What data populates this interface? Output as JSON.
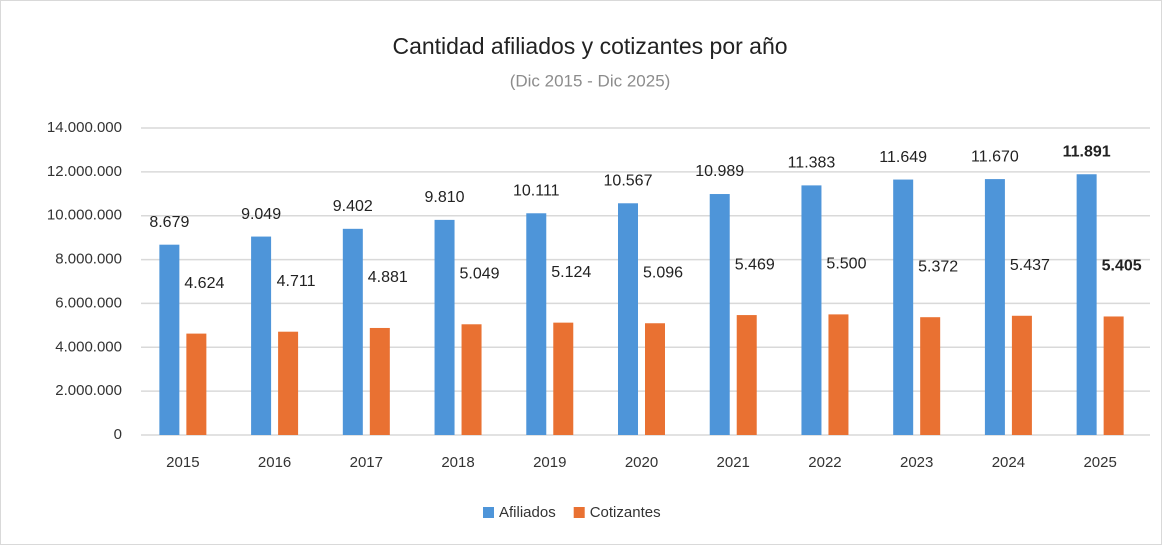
{
  "chart_data": {
    "type": "bar",
    "title": "Cantidad afiliados y cotizantes por año",
    "subtitle": "(Dic 2015 - Dic 2025)",
    "categories": [
      "2015",
      "2016",
      "2017",
      "2018",
      "2019",
      "2020",
      "2021",
      "2022",
      "2023",
      "2024",
      "2025"
    ],
    "series": [
      {
        "name": "Afiliados",
        "color": "#4e95d9",
        "values": [
          8679000,
          9049000,
          9402000,
          9810000,
          10111000,
          10567000,
          10989000,
          11383000,
          11649000,
          11670000,
          11891000
        ],
        "value_labels": [
          "8.679",
          "9.049",
          "9.402",
          "9.810",
          "10.111",
          "10.567",
          "10.989",
          "11.383",
          "11.649",
          "11.670",
          "11.891"
        ]
      },
      {
        "name": "Cotizantes",
        "color": "#e97132",
        "values": [
          4624000,
          4711000,
          4881000,
          5049000,
          5124000,
          5096000,
          5469000,
          5500000,
          5372000,
          5437000,
          5405000
        ],
        "value_labels": [
          "4.624",
          "4.711",
          "4.881",
          "5.049",
          "5.124",
          "5.096",
          "5.469",
          "5.500",
          "5.372",
          "5.437",
          "5.405"
        ]
      }
    ],
    "ylim": [
      0,
      14000000
    ],
    "yticks": [
      0,
      {
        "value": 2000000,
        "label": "2.000.000"
      },
      {
        "value": 4000000,
        "label": "4.000.000"
      },
      {
        "value": 6000000,
        "label": "6.000.000"
      },
      {
        "value": 8000000,
        "label": "8.000.000"
      },
      {
        "value": 10000000,
        "label": "10.000.000"
      },
      {
        "value": 12000000,
        "label": "12.000.000"
      },
      {
        "value": 14000000,
        "label": "14.000.000"
      }
    ],
    "grid": true,
    "legend": "bottom",
    "emphasize_last": true
  }
}
